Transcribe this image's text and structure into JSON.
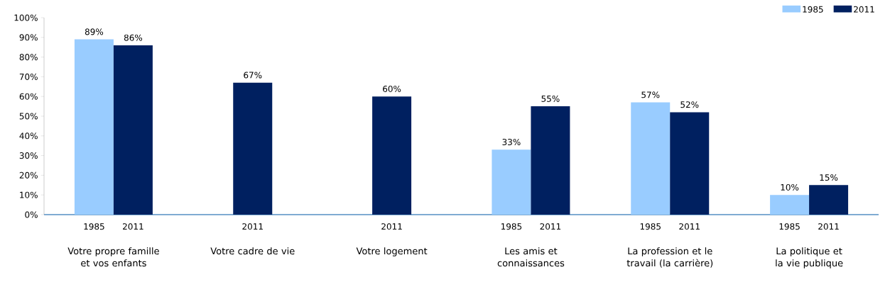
{
  "chart_data": {
    "type": "bar",
    "categories": [
      "Votre propre famille et vos enfants",
      "Votre cadre de vie",
      "Votre logement",
      "Les amis et connaissances",
      "La profession et le travail (la carrière)",
      "La politique et la vie publique"
    ],
    "series": [
      {
        "name": "1985",
        "color": "#99ccff",
        "values": [
          89,
          null,
          null,
          33,
          57,
          10
        ],
        "value_labels": [
          "89%",
          null,
          null,
          "33%",
          "57%",
          "10%"
        ]
      },
      {
        "name": "2011",
        "color": "#002060",
        "values": [
          86,
          67,
          60,
          55,
          52,
          15
        ],
        "value_labels": [
          "86%",
          "67%",
          "60%",
          "55%",
          "52%",
          "15%"
        ]
      }
    ],
    "ylim": [
      0,
      100
    ],
    "yticks": [
      {
        "value": 0,
        "label": "0%"
      },
      {
        "value": 10,
        "label": "10%"
      },
      {
        "value": 20,
        "label": "20%"
      },
      {
        "value": 30,
        "label": "30%"
      },
      {
        "value": 40,
        "label": "40%"
      },
      {
        "value": 50,
        "label": "50%"
      },
      {
        "value": 60,
        "label": "60%"
      },
      {
        "value": 70,
        "label": "70%"
      },
      {
        "value": 80,
        "label": "80%"
      },
      {
        "value": 90,
        "label": "90%"
      },
      {
        "value": 100,
        "label": "100%"
      }
    ],
    "legend": "top right"
  }
}
